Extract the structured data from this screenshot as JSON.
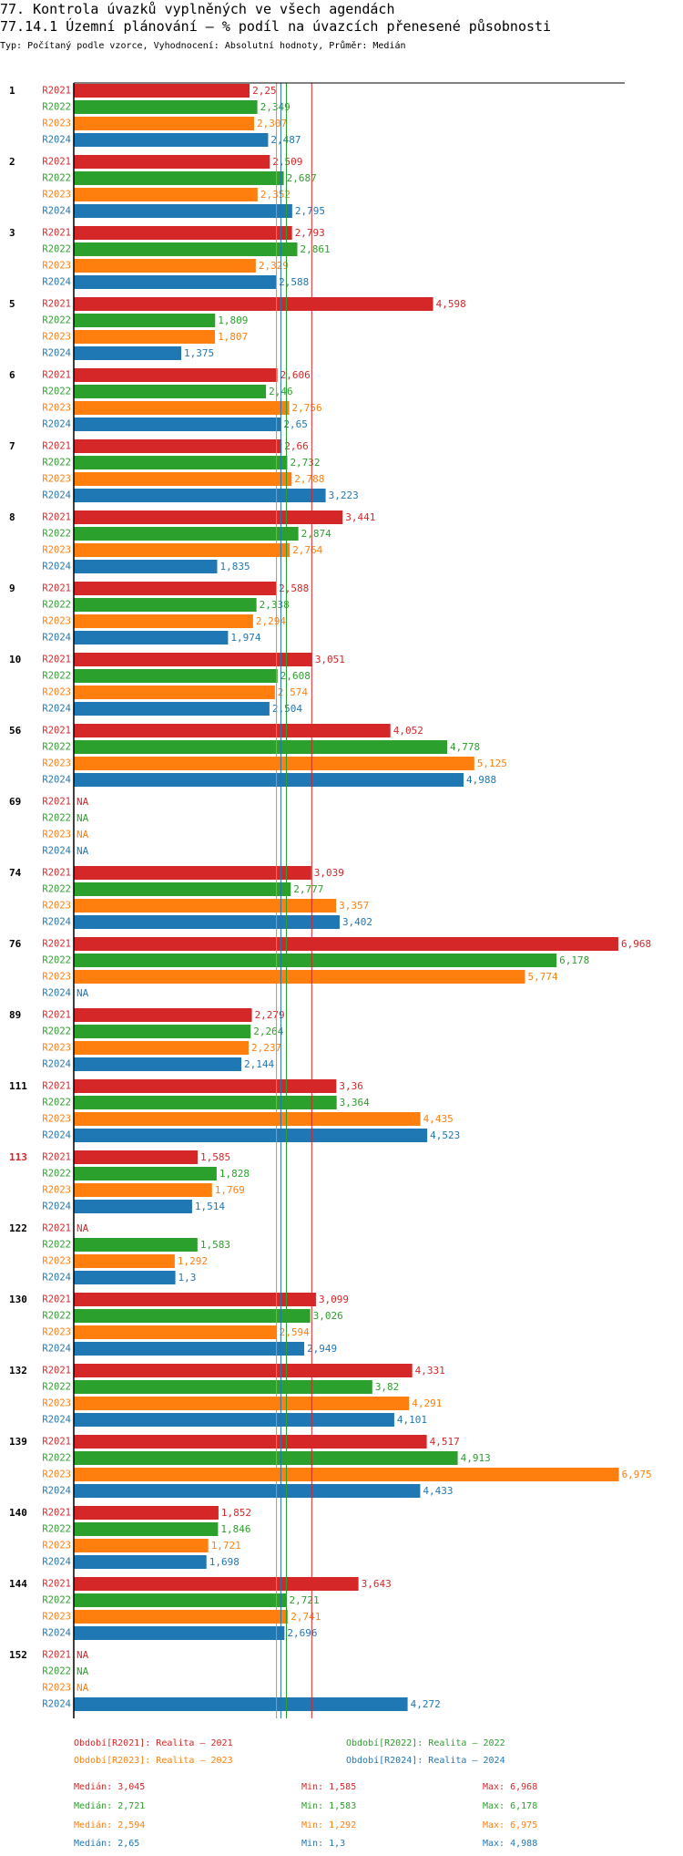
{
  "header": {
    "title": "77. Kontrola úvazků vyplněných ve všech agendách",
    "subtitle": "77.14.1 Územní plánování – % podíl na úvazcích přenesené působnosti",
    "description": "Typ: Počítaný podle vzorce, Vyhodnocení: Absolutní hodnoty, Průměr: Medián"
  },
  "chart_data": {
    "type": "bar",
    "orientation": "horizontal",
    "xlim": [
      0,
      7.05
    ],
    "na_label": "NA",
    "categories": [
      "1",
      "2",
      "3",
      "5",
      "6",
      "7",
      "8",
      "9",
      "10",
      "56",
      "69",
      "74",
      "76",
      "89",
      "111",
      "113",
      "122",
      "130",
      "132",
      "139",
      "140",
      "144",
      "152"
    ],
    "highlight": {
      "index": 15,
      "color": "#d62728"
    },
    "series": [
      {
        "name": "R2021",
        "color": "#d62728",
        "legend": "Období[R2021]: Realita – 2021",
        "median": 3.045,
        "min": 1.585,
        "max": 6.968,
        "values": [
          2.25,
          2.509,
          2.793,
          4.598,
          2.606,
          2.66,
          3.441,
          2.588,
          3.051,
          4.052,
          null,
          3.039,
          6.968,
          2.279,
          3.36,
          1.585,
          null,
          3.099,
          4.331,
          4.517,
          1.852,
          3.643,
          null
        ]
      },
      {
        "name": "R2022",
        "color": "#2ca02c",
        "legend": "Období[R2022]: Realita – 2022",
        "median": 2.721,
        "min": 1.583,
        "max": 6.178,
        "values": [
          2.349,
          2.687,
          2.861,
          1.809,
          2.46,
          2.732,
          2.874,
          2.338,
          2.608,
          4.778,
          null,
          2.777,
          6.178,
          2.264,
          3.364,
          1.828,
          1.583,
          3.026,
          3.82,
          4.913,
          1.846,
          2.721,
          null
        ]
      },
      {
        "name": "R2023",
        "color": "#ff7f0e",
        "legend": "Období[R2023]: Realita – 2023",
        "median": 2.594,
        "min": 1.292,
        "max": 6.975,
        "values": [
          2.307,
          2.352,
          2.329,
          1.807,
          2.756,
          2.788,
          2.764,
          2.294,
          2.574,
          5.125,
          null,
          3.357,
          5.774,
          2.237,
          4.435,
          1.769,
          1.292,
          2.594,
          4.291,
          6.975,
          1.721,
          2.741,
          null
        ]
      },
      {
        "name": "R2024",
        "color": "#1f77b4",
        "legend": "Období[R2024]: Realita – 2024",
        "median": 2.65,
        "min": 1.3,
        "max": 4.988,
        "values": [
          2.487,
          2.795,
          2.588,
          1.375,
          2.65,
          3.223,
          1.835,
          1.974,
          2.504,
          4.988,
          null,
          3.402,
          null,
          2.144,
          4.523,
          1.514,
          1.3,
          2.949,
          4.101,
          4.433,
          1.698,
          2.696,
          4.272
        ]
      }
    ]
  },
  "stats_labels": {
    "median": "Medián:",
    "min": "Min:",
    "max": "Max:"
  }
}
